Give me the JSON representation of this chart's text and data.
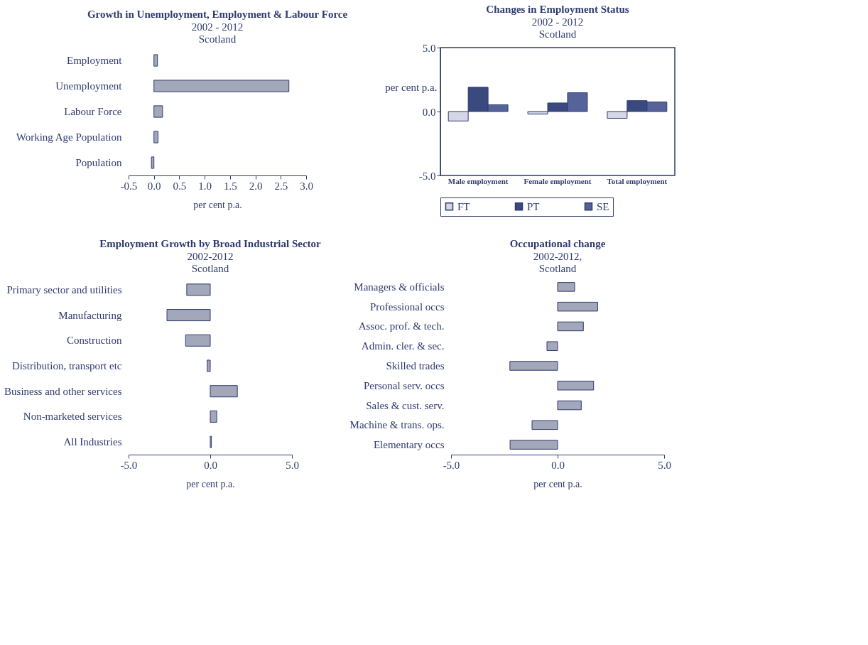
{
  "chart_data": [
    {
      "type": "bar",
      "orientation": "horizontal",
      "title": "Growth in Unemployment, Employment & Labour Force",
      "subtitle": "2002 - 2012\nScotland",
      "xlabel": "per cent p.a.",
      "categories": [
        "Employment",
        "Unemployment",
        "Labour Force",
        "Working Age Population",
        "Population"
      ],
      "values": [
        0.07,
        2.66,
        0.17,
        0.08,
        -0.05
      ],
      "color": "#a3a7ba",
      "xlim": [
        -0.5,
        3.0
      ],
      "xticks": [
        {
          "value": -0.5,
          "label": "-0.5"
        },
        {
          "value": 0,
          "label": "0.0"
        },
        0.5,
        {
          "value": 1,
          "label": "1.0"
        },
        1.5,
        {
          "value": 2,
          "label": "2.0"
        },
        2.5,
        {
          "value": 3,
          "label": "3.0"
        }
      ]
    },
    {
      "type": "bar",
      "title": "Changes in Employment Status",
      "subtitle": "2002 - 2012\nScotland",
      "ylabel": "per cent p.a.",
      "categories": [
        "Male employment",
        "Female employment",
        "Total employment"
      ],
      "series": [
        {
          "name": "FT",
          "color": "#d3d7e6",
          "values": [
            -0.74,
            -0.2,
            -0.53
          ]
        },
        {
          "name": "PT",
          "color": "#3b4a7e",
          "values": [
            1.9,
            0.67,
            0.85
          ]
        },
        {
          "name": "SE",
          "color": "#56639a",
          "values": [
            0.53,
            1.47,
            0.75
          ]
        }
      ],
      "ylim": [
        -5,
        5
      ],
      "yticks": [
        {
          "value": -5,
          "label": "-5.0"
        },
        {
          "value": 0,
          "label": "0.0"
        },
        {
          "value": 5,
          "label": "5.0"
        }
      ],
      "legend": "bottom"
    },
    {
      "type": "bar",
      "orientation": "horizontal",
      "title": "Employment Growth by Broad Industrial Sector",
      "subtitle": "2002-2012\nScotland",
      "xlabel": "per cent p.a.",
      "categories": [
        "Primary sector and utilities",
        "Manufacturing",
        "Construction",
        "Distribution, transport etc",
        "Business and other services",
        "Non-marketed services",
        "All Industries"
      ],
      "values": [
        -1.44,
        -2.65,
        -1.51,
        -0.19,
        1.66,
        0.4,
        0.07
      ],
      "color": "#a3a7ba",
      "xlim": [
        -5,
        5
      ],
      "xticks": [
        {
          "value": -5,
          "label": "-5.0"
        },
        {
          "value": 0,
          "label": "0.0"
        },
        {
          "value": 5,
          "label": "5.0"
        }
      ]
    },
    {
      "type": "bar",
      "orientation": "horizontal",
      "title": "Occupational change",
      "subtitle": "2002-2012,\nScotland",
      "xlabel": "per cent p.a.",
      "categories": [
        "Managers & officials",
        "Professional occs",
        "Assoc. prof. & tech.",
        "Admin. cler. & sec.",
        "Skilled trades",
        "Personal serv. occs",
        "Sales & cust. serv.",
        "Machine & trans. ops.",
        "Elementary occs"
      ],
      "values": [
        0.8,
        1.88,
        1.21,
        -0.5,
        -2.24,
        1.69,
        1.11,
        -1.2,
        -2.23
      ],
      "color": "#a3a7ba",
      "xlim": [
        -5,
        5
      ],
      "xticks": [
        {
          "value": -5,
          "label": "-5.0"
        },
        {
          "value": 0,
          "label": "0.0"
        },
        {
          "value": 5,
          "label": "5.0"
        }
      ]
    }
  ]
}
